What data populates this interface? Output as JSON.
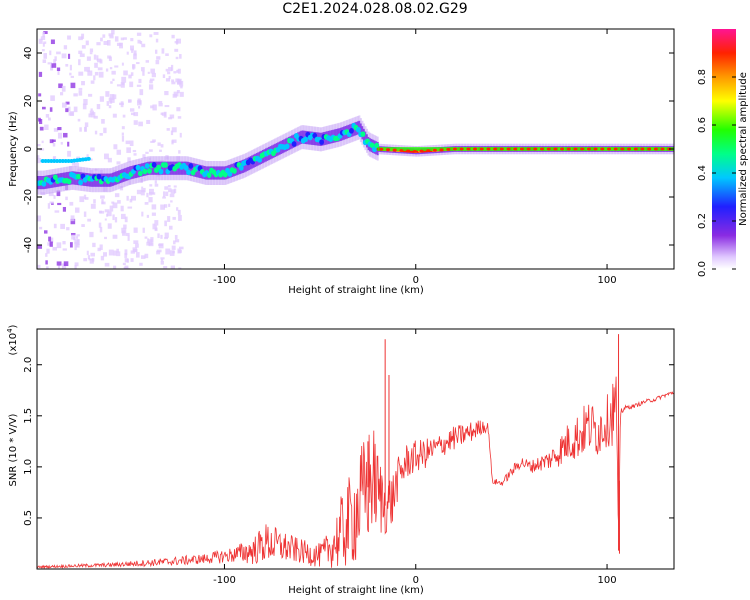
{
  "figure_title": "C2E1.2024.028.08.02.G29",
  "chart_data": [
    {
      "type": "heatmap",
      "name": "spectrogram",
      "xlabel": "Height of straight line (km)",
      "ylabel": "Frequency (Hz)",
      "xlim": [
        -198,
        135
      ],
      "ylim": [
        -50,
        50
      ],
      "x_ticks": [
        -100,
        0,
        100
      ],
      "y_ticks": [
        -40,
        -20,
        0,
        20,
        40
      ],
      "x_tick_labels": [
        "-100",
        "0",
        "100"
      ],
      "y_tick_labels": [
        "-40",
        "-20",
        "0",
        "20",
        "40"
      ],
      "colorbar": {
        "label": "Normalized spectral amplitude",
        "range": [
          0,
          1
        ],
        "ticks": [
          0.0,
          0.2,
          0.4,
          0.6,
          0.8
        ],
        "tick_labels": [
          "0.0",
          "0.2",
          "0.4",
          "0.6",
          "0.8"
        ],
        "colormap": "rainbow (white-purple-blue-cyan-green-yellow-orange-red-magenta)"
      },
      "ridge": {
        "description": "dominant frequency track vs height",
        "x": [
          -195,
          -180,
          -170,
          -160,
          -150,
          -140,
          -130,
          -120,
          -110,
          -100,
          -90,
          -80,
          -70,
          -60,
          -50,
          -40,
          -30,
          -25,
          -20,
          0,
          20,
          40,
          60,
          80,
          100,
          110,
          135
        ],
        "y": [
          -14,
          -12,
          -13,
          -13,
          -10,
          -8,
          -8,
          -8,
          -10,
          -10,
          -7,
          -3,
          1,
          5,
          4,
          6,
          9,
          2,
          0,
          -1,
          0,
          0,
          0,
          0,
          0,
          0,
          0
        ],
        "secondary_branch": {
          "x": [
            -195,
            -180,
            -170
          ],
          "y": [
            -5,
            -5,
            -4
          ]
        }
      },
      "grid": false
    },
    {
      "type": "line",
      "name": "snr",
      "xlabel": "Height of straight line (km)",
      "ylabel": "SNR (10 * V/V)",
      "y_multiplier_label": "(x10",
      "y_multiplier_exp": "4",
      "y_multiplier_close": ")",
      "xlim": [
        -198,
        135
      ],
      "ylim": [
        0,
        2.35
      ],
      "x_ticks": [
        -100,
        0,
        100
      ],
      "y_ticks": [
        0.5,
        1.0,
        1.5,
        2.0
      ],
      "x_tick_labels": [
        "-100",
        "0",
        "100"
      ],
      "y_tick_labels": [
        "0.5",
        "1.0",
        "1.5",
        "2.0"
      ],
      "line_color": "#ee3333",
      "envelope": {
        "x": [
          -198,
          -160,
          -130,
          -110,
          -95,
          -85,
          -78,
          -70,
          -60,
          -50,
          -45,
          -40,
          -35,
          -30,
          -25,
          -22,
          -20,
          -16,
          -12,
          -10,
          -5,
          0,
          5,
          10,
          20,
          30,
          35,
          38,
          40,
          45,
          50,
          55,
          60,
          70,
          75,
          80,
          85,
          90,
          95,
          100,
          103,
          105,
          106,
          107,
          110,
          115,
          120,
          125,
          130,
          135
        ],
        "y": [
          0.02,
          0.04,
          0.07,
          0.1,
          0.14,
          0.18,
          0.26,
          0.22,
          0.17,
          0.13,
          0.2,
          0.32,
          0.45,
          0.6,
          0.8,
          0.9,
          0.75,
          0.62,
          0.68,
          0.85,
          1.05,
          1.1,
          1.13,
          1.18,
          1.28,
          1.35,
          1.4,
          1.38,
          0.86,
          0.84,
          0.95,
          1.05,
          1.0,
          1.07,
          1.15,
          1.25,
          1.3,
          1.4,
          1.35,
          1.45,
          1.55,
          1.6,
          0.18,
          1.55,
          1.58,
          1.6,
          1.64,
          1.66,
          1.7,
          1.73
        ],
        "noise": [
          0.01,
          0.02,
          0.04,
          0.05,
          0.08,
          0.14,
          0.2,
          0.16,
          0.12,
          0.12,
          0.18,
          0.35,
          0.45,
          0.55,
          0.6,
          0.5,
          0.45,
          0.3,
          0.28,
          0.22,
          0.18,
          0.16,
          0.15,
          0.12,
          0.12,
          0.1,
          0.07,
          0.05,
          0.03,
          0.03,
          0.05,
          0.06,
          0.06,
          0.1,
          0.15,
          0.2,
          0.24,
          0.26,
          0.26,
          0.25,
          0.35,
          0.35,
          0.0,
          0.05,
          0.02,
          0.02,
          0.02,
          0.02,
          0.02,
          0.02
        ]
      },
      "spikes": [
        {
          "x": -25,
          "y": 1.25
        },
        {
          "x": -16,
          "y": 2.25
        },
        {
          "x": -14,
          "y": 1.9
        },
        {
          "x": 106,
          "y": 2.3
        },
        {
          "x": 106.5,
          "y": 0.15
        }
      ],
      "grid": false
    }
  ]
}
